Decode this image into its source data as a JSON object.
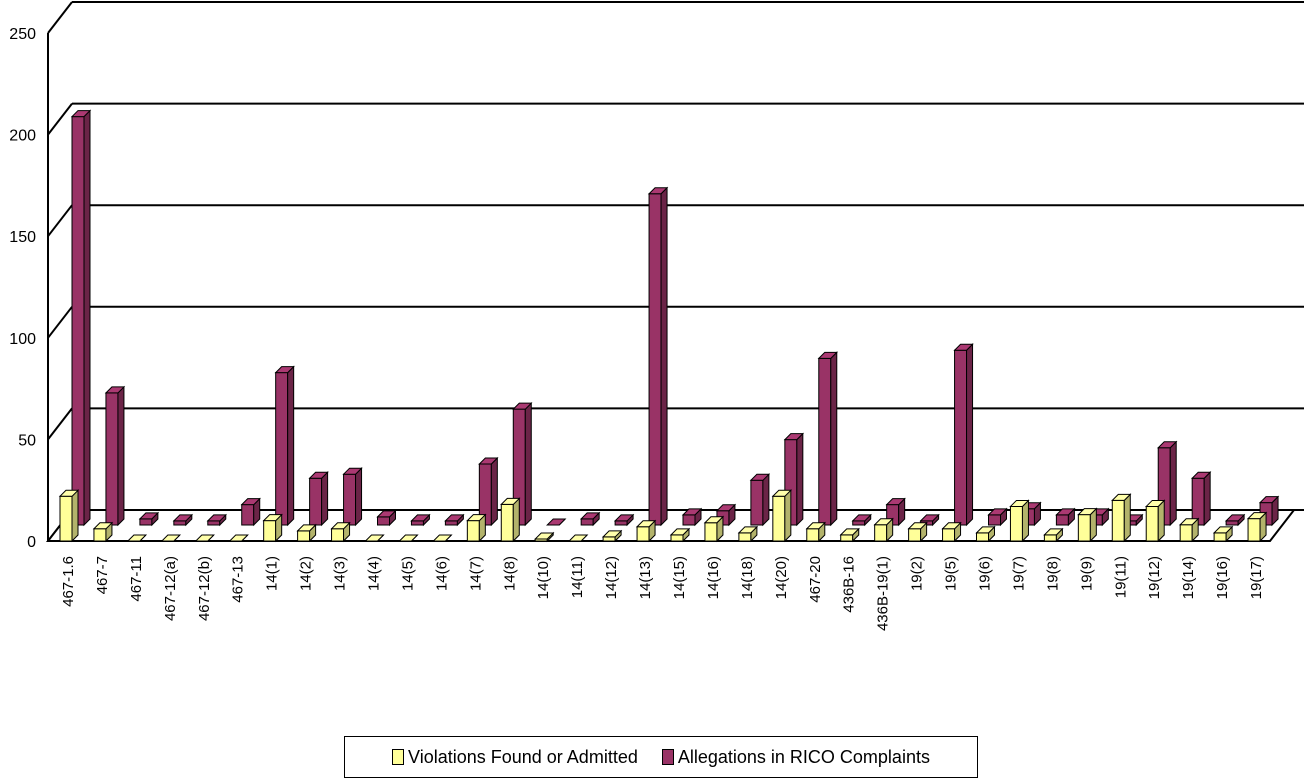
{
  "chart_data": {
    "type": "bar",
    "title": "",
    "xlabel": "",
    "ylabel": "",
    "ylim": [
      0,
      250
    ],
    "yticks": [
      0,
      50,
      100,
      150,
      200,
      250
    ],
    "grid": true,
    "legend_position": "bottom",
    "categories": [
      "467-1.6",
      "467-7",
      "467-11",
      "467-12(a)",
      "467-12(b)",
      "467-13",
      "14(1)",
      "14(2)",
      "14(3)",
      "14(4)",
      "14(5)",
      "14(6)",
      "14(7)",
      "14(8)",
      "14(10)",
      "14(11)",
      "14(12)",
      "14(13)",
      "14(15)",
      "14(16)",
      "14(18)",
      "14(20)",
      "467-20",
      "436B-16",
      "436B-19(1)",
      "19(2)",
      "19(5)",
      "19(6)",
      "19(7)",
      "19(8)",
      "19(9)",
      "19(11)",
      "19(12)",
      "19(14)",
      "19(16)",
      "19(17)"
    ],
    "series": [
      {
        "name": "Violations Found or Admitted",
        "color": "#ffff99",
        "values": [
          22,
          6,
          0,
          0,
          0,
          0,
          10,
          5,
          6,
          0,
          0,
          0,
          10,
          18,
          1,
          0,
          2,
          7,
          3,
          9,
          4,
          22,
          6,
          3,
          8,
          6,
          6,
          4,
          17,
          3,
          13,
          20,
          17,
          8,
          4,
          11
        ]
      },
      {
        "name": "Allegations in RICO Complaints",
        "color": "#993366",
        "values": [
          201,
          65,
          3,
          2,
          2,
          10,
          75,
          23,
          25,
          4,
          2,
          2,
          30,
          57,
          0,
          3,
          2,
          163,
          5,
          7,
          22,
          42,
          82,
          2,
          10,
          2,
          86,
          5,
          8,
          5,
          5,
          2,
          38,
          23,
          2,
          11
        ]
      }
    ]
  }
}
